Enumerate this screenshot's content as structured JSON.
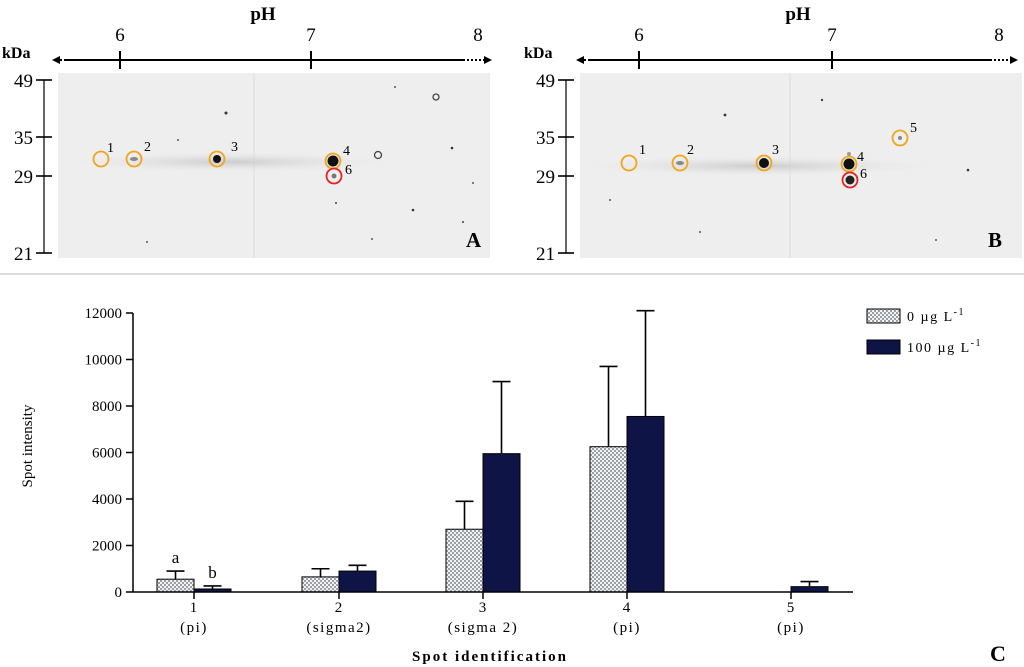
{
  "gels": [
    {
      "panel_label": "A",
      "ph_title": "pH",
      "kda_label": "kDa",
      "ph_ticks": [
        "6",
        "7",
        "8"
      ],
      "mw_ticks": [
        "49",
        "35",
        "29",
        "21"
      ],
      "spots": [
        {
          "label": "1",
          "ring": "orange",
          "core": "none"
        },
        {
          "label": "2",
          "ring": "orange",
          "core": "faint"
        },
        {
          "label": "3",
          "ring": "orange",
          "core": "strong"
        },
        {
          "label": "4",
          "ring": "orange",
          "core": "strong"
        },
        {
          "label": "6",
          "ring": "red",
          "core": "faint"
        }
      ]
    },
    {
      "panel_label": "B",
      "ph_title": "pH",
      "kda_label": "kDa",
      "ph_ticks": [
        "6",
        "7",
        "8"
      ],
      "mw_ticks": [
        "49",
        "35",
        "29",
        "21"
      ],
      "spots": [
        {
          "label": "1",
          "ring": "orange",
          "core": "none"
        },
        {
          "label": "2",
          "ring": "orange",
          "core": "faint"
        },
        {
          "label": "3",
          "ring": "orange",
          "core": "strong"
        },
        {
          "label": "4",
          "ring": "orange",
          "core": "strong"
        },
        {
          "label": "6",
          "ring": "red",
          "core": "strong"
        },
        {
          "label": "5",
          "ring": "orange",
          "core": "faint"
        }
      ]
    }
  ],
  "chart_data": {
    "type": "bar",
    "panel_label": "C",
    "title": "",
    "xlabel": "Spot identification",
    "ylabel": "Spot intensity",
    "ylim": [
      0,
      12000
    ],
    "yticks": [
      "0",
      "2000",
      "4000",
      "6000",
      "8000",
      "10000",
      "12000"
    ],
    "categories": [
      {
        "id": "1",
        "name": "(pi)"
      },
      {
        "id": "2",
        "name": "(sigma2)"
      },
      {
        "id": "3",
        "name": "(sigma 2)"
      },
      {
        "id": "4",
        "name": "(pi)"
      },
      {
        "id": "5",
        "name": "(pi)"
      }
    ],
    "series": [
      {
        "name": "0 µg L",
        "unit_exp": "-1",
        "color": "#cfd3d6",
        "pattern": "checker",
        "values": [
          550,
          650,
          2700,
          6250,
          0
        ],
        "errors": [
          350,
          350,
          1200,
          3450,
          0
        ]
      },
      {
        "name": "100 µg L",
        "unit_exp": "-1",
        "color": "#0f1446",
        "pattern": "solid",
        "values": [
          130,
          900,
          5950,
          7550,
          230
        ],
        "errors": [
          130,
          250,
          3100,
          4550,
          220
        ]
      }
    ],
    "annotations": [
      {
        "category": "1",
        "series": 0,
        "text": "a"
      },
      {
        "category": "1",
        "series": 1,
        "text": "b"
      }
    ]
  }
}
